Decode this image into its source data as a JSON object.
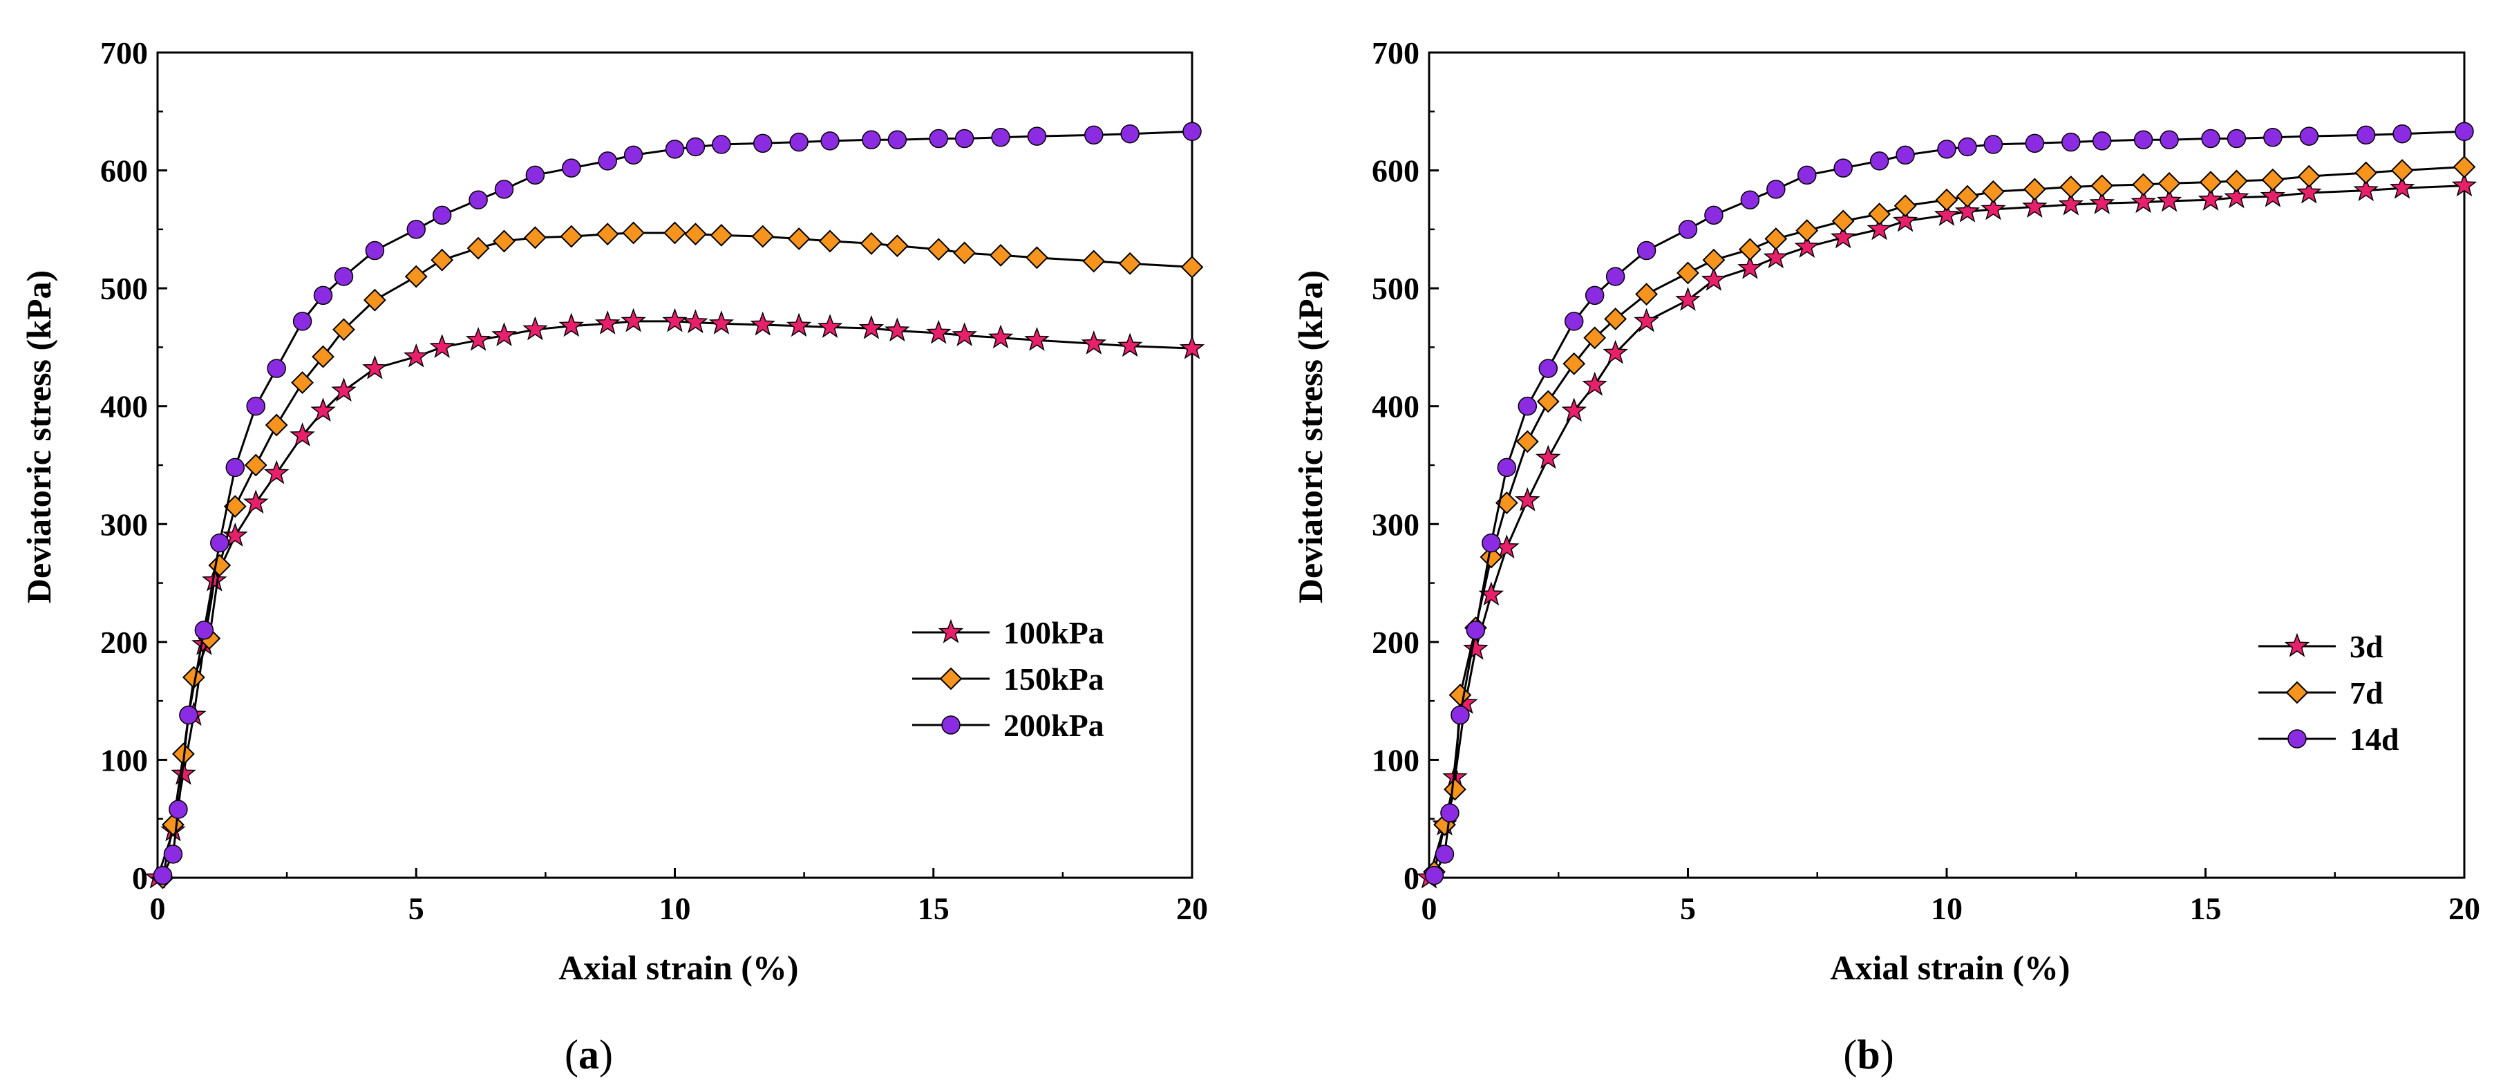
{
  "chart_data": [
    {
      "type": "line",
      "panel": "a",
      "caption_letter": "a",
      "xlabel": "Axial strain (%)",
      "ylabel": "Deviatoric stress (kPa)",
      "xlim": [
        0,
        20
      ],
      "ylim": [
        0,
        700
      ],
      "xticks": [
        "0",
        "5",
        "10",
        "15",
        "20"
      ],
      "yticks": [
        "0",
        "100",
        "200",
        "300",
        "400",
        "500",
        "600",
        "700"
      ],
      "grid": false,
      "legend_position": "bottom-right",
      "series": [
        {
          "name": "100kPa",
          "marker": "star",
          "color": "#e8206b",
          "points": [
            [
              0,
              0
            ],
            [
              0.3,
              40
            ],
            [
              0.5,
              88
            ],
            [
              0.7,
              138
            ],
            [
              0.9,
              198
            ],
            [
              1.1,
              252
            ],
            [
              1.5,
              290
            ],
            [
              1.9,
              318
            ],
            [
              2.3,
              343
            ],
            [
              2.8,
              375
            ],
            [
              3.2,
              396
            ],
            [
              3.6,
              413
            ],
            [
              4.2,
              432
            ],
            [
              5,
              442
            ],
            [
              5.5,
              450
            ],
            [
              6.2,
              456
            ],
            [
              6.7,
              460
            ],
            [
              7.3,
              465
            ],
            [
              8,
              468
            ],
            [
              8.7,
              470
            ],
            [
              9.2,
              472
            ],
            [
              10,
              472
            ],
            [
              10.4,
              471
            ],
            [
              10.9,
              470
            ],
            [
              11.7,
              469
            ],
            [
              12.4,
              468
            ],
            [
              13,
              467
            ],
            [
              13.8,
              466
            ],
            [
              14.3,
              464
            ],
            [
              15.1,
              462
            ],
            [
              15.6,
              460
            ],
            [
              16.3,
              458
            ],
            [
              17,
              456
            ],
            [
              18.1,
              453
            ],
            [
              18.8,
              451
            ],
            [
              20,
              449
            ]
          ]
        },
        {
          "name": "150kPa",
          "marker": "diamond",
          "color": "#f7941d",
          "points": [
            [
              0.1,
              0
            ],
            [
              0.3,
              45
            ],
            [
              0.5,
              105
            ],
            [
              0.7,
              170
            ],
            [
              1,
              203
            ],
            [
              1.2,
              265
            ],
            [
              1.5,
              315
            ],
            [
              1.9,
              350
            ],
            [
              2.3,
              384
            ],
            [
              2.8,
              420
            ],
            [
              3.2,
              442
            ],
            [
              3.6,
              465
            ],
            [
              4.2,
              490
            ],
            [
              5,
              510
            ],
            [
              5.5,
              524
            ],
            [
              6.2,
              534
            ],
            [
              6.7,
              540
            ],
            [
              7.3,
              543
            ],
            [
              8,
              544
            ],
            [
              8.7,
              546
            ],
            [
              9.2,
              547
            ],
            [
              10,
              547
            ],
            [
              10.4,
              546
            ],
            [
              10.9,
              545
            ],
            [
              11.7,
              544
            ],
            [
              12.4,
              542
            ],
            [
              13,
              540
            ],
            [
              13.8,
              538
            ],
            [
              14.3,
              536
            ],
            [
              15.1,
              533
            ],
            [
              15.6,
              530
            ],
            [
              16.3,
              528
            ],
            [
              17,
              526
            ],
            [
              18.1,
              523
            ],
            [
              18.8,
              521
            ],
            [
              20,
              518
            ]
          ]
        },
        {
          "name": "200kPa",
          "marker": "circle",
          "color": "#8b2be2",
          "points": [
            [
              0.1,
              2
            ],
            [
              0.3,
              20
            ],
            [
              0.4,
              58
            ],
            [
              0.6,
              138
            ],
            [
              0.9,
              210
            ],
            [
              1.2,
              284
            ],
            [
              1.5,
              348
            ],
            [
              1.9,
              400
            ],
            [
              2.3,
              432
            ],
            [
              2.8,
              472
            ],
            [
              3.2,
              494
            ],
            [
              3.6,
              510
            ],
            [
              4.2,
              532
            ],
            [
              5,
              550
            ],
            [
              5.5,
              562
            ],
            [
              6.2,
              575
            ],
            [
              6.7,
              584
            ],
            [
              7.3,
              596
            ],
            [
              8,
              602
            ],
            [
              8.7,
              608
            ],
            [
              9.2,
              613
            ],
            [
              10,
              618
            ],
            [
              10.4,
              620
            ],
            [
              10.9,
              622
            ],
            [
              11.7,
              623
            ],
            [
              12.4,
              624
            ],
            [
              13,
              625
            ],
            [
              13.8,
              626
            ],
            [
              14.3,
              626
            ],
            [
              15.1,
              627
            ],
            [
              15.6,
              627
            ],
            [
              16.3,
              628
            ],
            [
              17,
              629
            ],
            [
              18.1,
              630
            ],
            [
              18.8,
              631
            ],
            [
              20,
              633
            ]
          ]
        }
      ]
    },
    {
      "type": "line",
      "panel": "b",
      "caption_letter": "b",
      "xlabel": "Axial strain (%)",
      "ylabel": "Deviatoric stress (kPa)",
      "xlim": [
        0,
        20
      ],
      "ylim": [
        0,
        700
      ],
      "xticks": [
        "0",
        "5",
        "10",
        "15",
        "20"
      ],
      "yticks": [
        "0",
        "100",
        "200",
        "300",
        "400",
        "500",
        "600",
        "700"
      ],
      "grid": false,
      "legend_position": "bottom-right",
      "series": [
        {
          "name": "3d",
          "marker": "star",
          "color": "#e8206b",
          "points": [
            [
              0,
              0
            ],
            [
              0.3,
              45
            ],
            [
              0.5,
              85
            ],
            [
              0.7,
              148
            ],
            [
              0.9,
              194
            ],
            [
              1.2,
              240
            ],
            [
              1.5,
              280
            ],
            [
              1.9,
              320
            ],
            [
              2.3,
              356
            ],
            [
              2.8,
              396
            ],
            [
              3.2,
              418
            ],
            [
              3.6,
              445
            ],
            [
              4.2,
              472
            ],
            [
              5,
              490
            ],
            [
              5.5,
              507
            ],
            [
              6.2,
              517
            ],
            [
              6.7,
              526
            ],
            [
              7.3,
              535
            ],
            [
              8,
              543
            ],
            [
              8.7,
              550
            ],
            [
              9.2,
              557
            ],
            [
              10,
              562
            ],
            [
              10.4,
              565
            ],
            [
              10.9,
              567
            ],
            [
              11.7,
              569
            ],
            [
              12.4,
              571
            ],
            [
              13,
              572
            ],
            [
              13.8,
              573
            ],
            [
              14.3,
              574
            ],
            [
              15.1,
              575
            ],
            [
              15.6,
              577
            ],
            [
              16.3,
              578
            ],
            [
              17,
              581
            ],
            [
              18.1,
              583
            ],
            [
              18.8,
              585
            ],
            [
              20,
              587
            ]
          ]
        },
        {
          "name": "7d",
          "marker": "diamond",
          "color": "#f7941d",
          "points": [
            [
              0.1,
              5
            ],
            [
              0.3,
              45
            ],
            [
              0.5,
              75
            ],
            [
              0.6,
              155
            ],
            [
              0.9,
              212
            ],
            [
              1.2,
              272
            ],
            [
              1.5,
              318
            ],
            [
              1.9,
              370
            ],
            [
              2.3,
              404
            ],
            [
              2.8,
              436
            ],
            [
              3.2,
              458
            ],
            [
              3.6,
              474
            ],
            [
              4.2,
              495
            ],
            [
              5,
              513
            ],
            [
              5.5,
              524
            ],
            [
              6.2,
              533
            ],
            [
              6.7,
              542
            ],
            [
              7.3,
              549
            ],
            [
              8,
              557
            ],
            [
              8.7,
              563
            ],
            [
              9.2,
              570
            ],
            [
              10,
              575
            ],
            [
              10.4,
              578
            ],
            [
              10.9,
              582
            ],
            [
              11.7,
              584
            ],
            [
              12.4,
              586
            ],
            [
              13,
              587
            ],
            [
              13.8,
              588
            ],
            [
              14.3,
              589
            ],
            [
              15.1,
              590
            ],
            [
              15.6,
              591
            ],
            [
              16.3,
              592
            ],
            [
              17,
              595
            ],
            [
              18.1,
              598
            ],
            [
              18.8,
              600
            ],
            [
              20,
              603
            ]
          ]
        },
        {
          "name": "14d",
          "marker": "circle",
          "color": "#8b2be2",
          "points": [
            [
              0.1,
              2
            ],
            [
              0.3,
              20
            ],
            [
              0.4,
              55
            ],
            [
              0.6,
              138
            ],
            [
              0.9,
              210
            ],
            [
              1.2,
              284
            ],
            [
              1.5,
              348
            ],
            [
              1.9,
              400
            ],
            [
              2.3,
              432
            ],
            [
              2.8,
              472
            ],
            [
              3.2,
              494
            ],
            [
              3.6,
              510
            ],
            [
              4.2,
              532
            ],
            [
              5,
              550
            ],
            [
              5.5,
              562
            ],
            [
              6.2,
              575
            ],
            [
              6.7,
              584
            ],
            [
              7.3,
              596
            ],
            [
              8,
              602
            ],
            [
              8.7,
              608
            ],
            [
              9.2,
              613
            ],
            [
              10,
              618
            ],
            [
              10.4,
              620
            ],
            [
              10.9,
              622
            ],
            [
              11.7,
              623
            ],
            [
              12.4,
              624
            ],
            [
              13,
              625
            ],
            [
              13.8,
              626
            ],
            [
              14.3,
              626
            ],
            [
              15.1,
              627
            ],
            [
              15.6,
              627
            ],
            [
              16.3,
              628
            ],
            [
              17,
              629
            ],
            [
              18.1,
              630
            ],
            [
              18.8,
              631
            ],
            [
              20,
              633
            ]
          ]
        }
      ]
    }
  ],
  "captions": [
    {
      "open": "(",
      "letter": "a",
      "close": ")"
    },
    {
      "open": "(",
      "letter": "b",
      "close": ")"
    }
  ]
}
